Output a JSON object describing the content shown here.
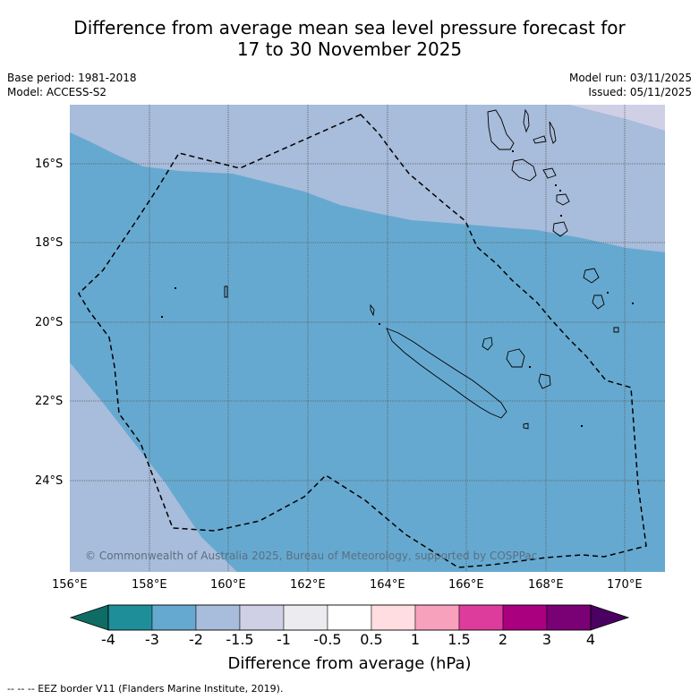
{
  "title": {
    "line1": "Difference from average mean sea level pressure forecast for",
    "line2": "17 to 30 November 2025"
  },
  "meta": {
    "base_period": "Base period: 1981-2018",
    "model": "Model: ACCESS-S2",
    "model_run": "Model run: 03/11/2025",
    "issued": "Issued: 05/11/2025"
  },
  "map": {
    "lon_labels": [
      "156°E",
      "158°E",
      "160°E",
      "162°E",
      "164°E",
      "166°E",
      "168°E",
      "170°E"
    ],
    "lat_labels": [
      "16°S",
      "18°S",
      "20°S",
      "22°S",
      "24°S"
    ],
    "copyright": "© Commonwealth of Australia 2025, Bureau of Meteorology, supported by COSPPac",
    "regions": [
      {
        "name": "-1 to -1.5 hPa",
        "color": "#cfd0e6"
      },
      {
        "name": "-1.5 to -2 hPa",
        "color": "#a8bcdb"
      },
      {
        "name": "-2 to -3 hPa",
        "color": "#66a9d0"
      }
    ]
  },
  "colorbar": {
    "tick_labels": [
      "-4",
      "-3",
      "-2",
      "-1.5",
      "-1",
      "-0.5",
      "0.5",
      "1",
      "1.5",
      "2",
      "3",
      "4"
    ],
    "colors": [
      "#1e8f98",
      "#66a9d0",
      "#a8bcdb",
      "#cfd0e6",
      "#ebebf0",
      "#ffffff",
      "#ffdde0",
      "#f7a1bd",
      "#de3c9c",
      "#aa0080",
      "#7a0075"
    ],
    "under_color": "#0e6c64",
    "over_color": "#4a0060",
    "label": "Difference from average (hPa)"
  },
  "footnote": "--  --  -- EEZ border V11 (Flanders Marine Institute, 2019)."
}
